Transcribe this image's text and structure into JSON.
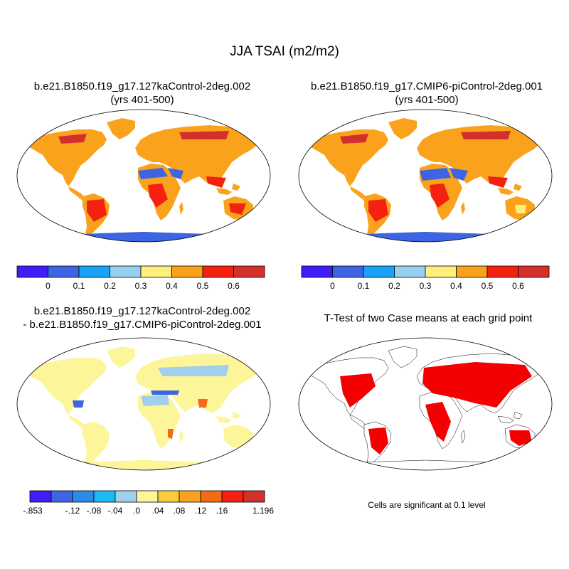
{
  "figure": {
    "title": "JJA TSAI (m2/m2)"
  },
  "panels": [
    {
      "id": "case1",
      "title_line1": "b.e21.B1850.f19_g17.127kaControl-2deg.002",
      "title_line2": "(yrs 401-500)"
    },
    {
      "id": "case2",
      "title_line1": "b.e21.B1850.f19_g17.CMIP6-piControl-2deg.001",
      "title_line2": "(yrs 401-500)"
    },
    {
      "id": "difference",
      "title_line1": "b.e21.B1850.f19_g17.127kaControl-2deg.002",
      "title_line2": "- b.e21.B1850.f19_g17.CMIP6-piControl-2deg.001"
    },
    {
      "id": "ttest",
      "title_line1": "T-Test of two Case means at each grid point",
      "note": "Cells are significant at 0.1 level"
    }
  ],
  "colorbars": {
    "absolute": {
      "colors": [
        "#3e1ef5",
        "#3d64e3",
        "#19a2f7",
        "#97cfef",
        "#fdef7b",
        "#fba21c",
        "#f42111",
        "#d32f2c"
      ],
      "labels": [
        "0",
        "0.1",
        "0.2",
        "0.3",
        "0.4",
        "0.5",
        "0.6"
      ]
    },
    "difference": {
      "colors": [
        "#3e1ef5",
        "#3d64e3",
        "#2e8ae9",
        "#1abaf3",
        "#a0d0ec",
        "#fdf59a",
        "#fbcb38",
        "#fba21c",
        "#f56a14",
        "#f42111",
        "#d32f2c"
      ],
      "labels": [
        "-.853",
        "-.12",
        "-.08",
        "-.04",
        ".0",
        ".04",
        ".08",
        ".12",
        ".16",
        "1.196"
      ]
    }
  },
  "map_colors": {
    "ocean": "#ffffff",
    "ice_absolute": "#3d64e3",
    "ice_difference": "#fdf59a",
    "desert_absolute": "#3d64e3",
    "significant": "#f40000"
  }
}
